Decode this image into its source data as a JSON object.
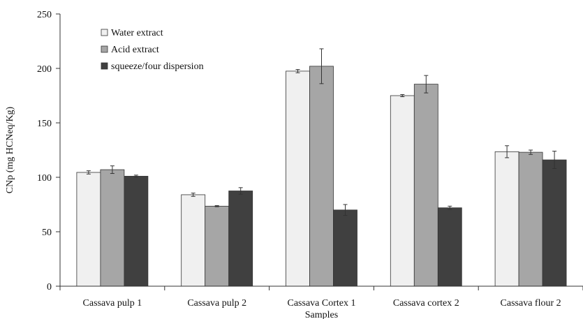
{
  "chart_data": {
    "type": "bar",
    "title": "",
    "xlabel": "Samples",
    "ylabel": "CNp (mg HCNeq/Kg)",
    "ylim": [
      0,
      250
    ],
    "yticks": [
      0,
      50,
      100,
      150,
      200,
      250
    ],
    "grid": false,
    "legend_position": "top-left",
    "categories": [
      "Cassava pulp 1",
      "Cassava pulp 2",
      "Cassava Cortex 1",
      "Cassava cortex 2",
      "Cassava flour 2"
    ],
    "series": [
      {
        "name": "Water extract",
        "color": "#f0f0f0",
        "values": [
          104.5,
          84,
          197.5,
          175,
          123.5
        ],
        "errors": [
          1.5,
          1.5,
          1.5,
          1,
          5.5
        ]
      },
      {
        "name": "Acid extract",
        "color": "#a6a6a6",
        "values": [
          107,
          73.5,
          202,
          185.5,
          123
        ],
        "errors": [
          3.5,
          0.5,
          16,
          8,
          2
        ]
      },
      {
        "name": "squeeze/four dispersion",
        "color": "#404040",
        "values": [
          101,
          87.5,
          70,
          72,
          116
        ],
        "errors": [
          1,
          3,
          5,
          1.5,
          8
        ]
      }
    ]
  }
}
